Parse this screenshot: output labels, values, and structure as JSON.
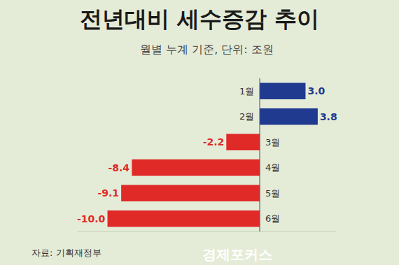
{
  "chart_data": {
    "type": "bar",
    "orientation": "horizontal",
    "title": "전년대비 세수증감 추이",
    "subtitle": "월별 누계 기준, 단위: 조원",
    "source": "자료: 기획재정부",
    "watermark": "경제포커스",
    "categories": [
      "1월",
      "2월",
      "3월",
      "4월",
      "5월",
      "6월"
    ],
    "values": [
      3.0,
      3.8,
      -2.2,
      -8.4,
      -9.1,
      -10.0
    ],
    "value_labels": [
      "3.0",
      "3.8",
      "-2.2",
      "-8.4",
      "-9.1",
      "-10.0"
    ],
    "colors": [
      "#1f3a8f",
      "#1f3a8f",
      "#e02a27",
      "#e02a27",
      "#e02a27",
      "#e02a27"
    ],
    "xlim": [
      -12,
      5
    ],
    "data_labels": true,
    "tick_labels": false,
    "grid": false
  }
}
